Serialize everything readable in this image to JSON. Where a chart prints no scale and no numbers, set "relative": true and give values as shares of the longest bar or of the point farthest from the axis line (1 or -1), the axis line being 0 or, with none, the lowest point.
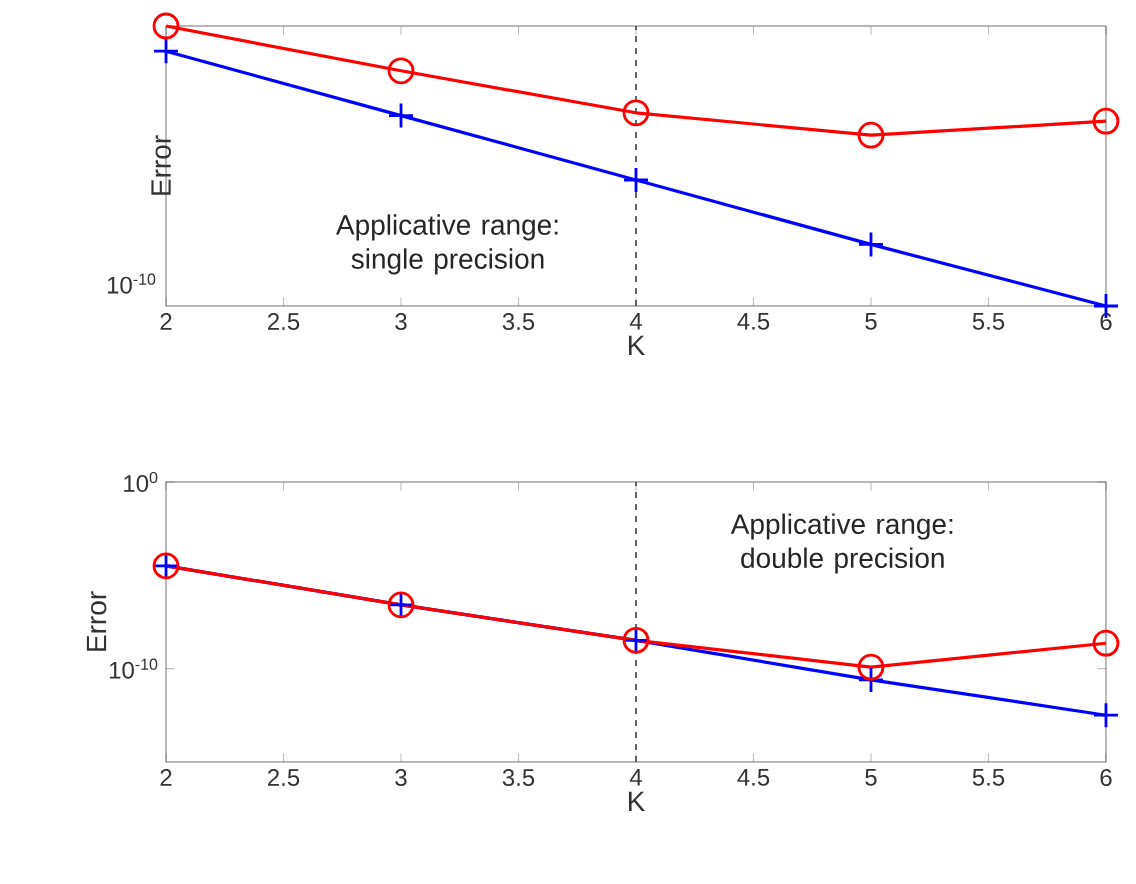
{
  "chart_data": [
    {
      "type": "line",
      "xlabel": "K",
      "ylabel": "Error",
      "x": [
        2,
        3,
        4,
        5,
        6
      ],
      "series": [
        {
          "color": "#ff0000",
          "marker": "circle",
          "values": [
            1,
            0.84,
            0.69,
            0.61,
            0.66
          ]
        },
        {
          "color": "#0000ff",
          "marker": "cross",
          "values": [
            0.91,
            0.68,
            0.45,
            0.22,
            0
          ]
        }
      ],
      "relative": true,
      "xlim": [
        2,
        6
      ],
      "xticks": [
        2,
        2.5,
        3,
        3.5,
        4,
        4.5,
        5,
        5.5,
        6
      ],
      "ref_lines": [
        {
          "axis": "x",
          "value": 4,
          "color": "#404040",
          "line_style": "dashed"
        }
      ],
      "annotations": [
        "Applicative range: single precision",
        "10$^{-10}$"
      ]
    },
    {
      "type": "line",
      "xlabel": "K",
      "ylabel": "Error",
      "log": "y",
      "x": [
        2,
        3,
        4,
        5,
        6
      ],
      "series": [
        {
          "color": "#0000ff",
          "marker": "cross",
          "values": [
            3.2e-05,
            2.6e-07,
            3.3e-09,
            2.5e-11,
            3.2e-13
          ]
        },
        {
          "color": "#ff0000",
          "marker": "circle",
          "values": [
            3.2e-05,
            2.6e-07,
            3.3e-09,
            1.2e-10,
            2.3e-09
          ]
        }
      ],
      "xlim": [
        2,
        6
      ],
      "xticks": [
        2,
        2.5,
        3,
        3.5,
        4,
        4.5,
        5,
        5.5,
        6
      ],
      "ylim": [
        1e-15,
        1
      ],
      "yticks": [
        {
          "value": 1,
          "label": "10$^{0}$"
        },
        {
          "value": 1e-10,
          "label": "10$^{-10}$"
        }
      ],
      "ref_lines": [
        {
          "axis": "x",
          "value": 4,
          "color": "#404040",
          "line_style": "dashed"
        }
      ],
      "annotations": [
        "Applicative range: double precision"
      ]
    }
  ]
}
